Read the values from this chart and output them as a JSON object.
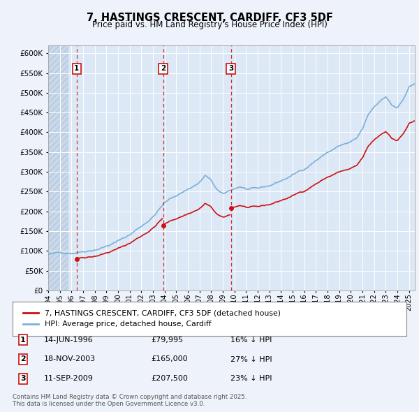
{
  "title": "7, HASTINGS CRESCENT, CARDIFF, CF3 5DF",
  "subtitle": "Price paid vs. HM Land Registry's House Price Index (HPI)",
  "background_color": "#eef2fa",
  "plot_background": "#dce8f5",
  "legend_label_red": "7, HASTINGS CRESCENT, CARDIFF, CF3 5DF (detached house)",
  "legend_label_blue": "HPI: Average price, detached house, Cardiff",
  "footnote": "Contains HM Land Registry data © Crown copyright and database right 2025.\nThis data is licensed under the Open Government Licence v3.0.",
  "sale_markers": [
    {
      "label": "1",
      "date": "14-JUN-1996",
      "price": 79995,
      "hpi_pct": "16% ↓ HPI",
      "x_year": 1996.45
    },
    {
      "label": "2",
      "date": "18-NOV-2003",
      "price": 165000,
      "hpi_pct": "27% ↓ HPI",
      "x_year": 2003.88
    },
    {
      "label": "3",
      "date": "11-SEP-2009",
      "price": 207500,
      "hpi_pct": "23% ↓ HPI",
      "x_year": 2009.7
    }
  ],
  "hpi_color": "#7ab0d8",
  "price_color": "#cc1111",
  "xmin": 1994.0,
  "xmax": 2025.5,
  "ylim": [
    0,
    620000
  ],
  "yticks": [
    0,
    50000,
    100000,
    150000,
    200000,
    250000,
    300000,
    350000,
    400000,
    450000,
    500000,
    550000,
    600000
  ],
  "xticks_years": [
    1994,
    1995,
    1996,
    1997,
    1998,
    1999,
    2000,
    2001,
    2002,
    2003,
    2004,
    2005,
    2006,
    2007,
    2008,
    2009,
    2010,
    2011,
    2012,
    2013,
    2014,
    2015,
    2016,
    2017,
    2018,
    2019,
    2020,
    2021,
    2022,
    2023,
    2024,
    2025
  ]
}
